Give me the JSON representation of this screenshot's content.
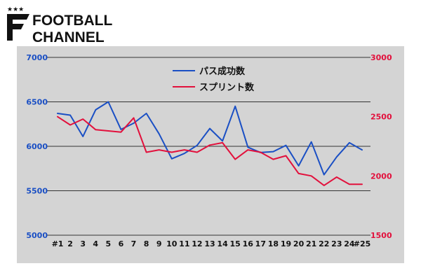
{
  "brand": {
    "logo_line1": "FOOTBALL",
    "logo_line2": "CHANNEL",
    "logo_stars": "★★★"
  },
  "chart_data": {
    "type": "line",
    "categories": [
      "#1",
      "2",
      "3",
      "4",
      "5",
      "6",
      "7",
      "8",
      "9",
      "10",
      "11",
      "12",
      "13",
      "14",
      "15",
      "16",
      "17",
      "18",
      "19",
      "20",
      "21",
      "22",
      "23",
      "24",
      "#25"
    ],
    "series": [
      {
        "name": "パス成功数",
        "axis": "left",
        "color": "#1a4fc4",
        "values": [
          6370,
          6350,
          6110,
          6410,
          6500,
          6190,
          6260,
          6370,
          6140,
          5860,
          5920,
          6010,
          6200,
          6060,
          6450,
          5990,
          5930,
          5940,
          6010,
          5780,
          6050,
          5680,
          5880,
          6040,
          5960
        ]
      },
      {
        "name": "スプリント数",
        "axis": "right",
        "color": "#e2103c",
        "values": [
          2500,
          2430,
          2480,
          2390,
          2380,
          2370,
          2490,
          2200,
          2220,
          2200,
          2220,
          2200,
          2260,
          2280,
          2140,
          2220,
          2200,
          2140,
          2170,
          2020,
          2000,
          1920,
          1990,
          1930,
          1930
        ]
      }
    ],
    "y_left": {
      "min": 5000,
      "max": 7000,
      "ticks": [
        "5000",
        "5500",
        "6000",
        "6500",
        "7000"
      ],
      "color": "#1a4fc4"
    },
    "y_right": {
      "min": 1500,
      "max": 3000,
      "ticks": [
        "1500",
        "2000",
        "2500",
        "3000"
      ],
      "color": "#e2103c"
    },
    "grid": true,
    "legend_position": "top-center"
  }
}
